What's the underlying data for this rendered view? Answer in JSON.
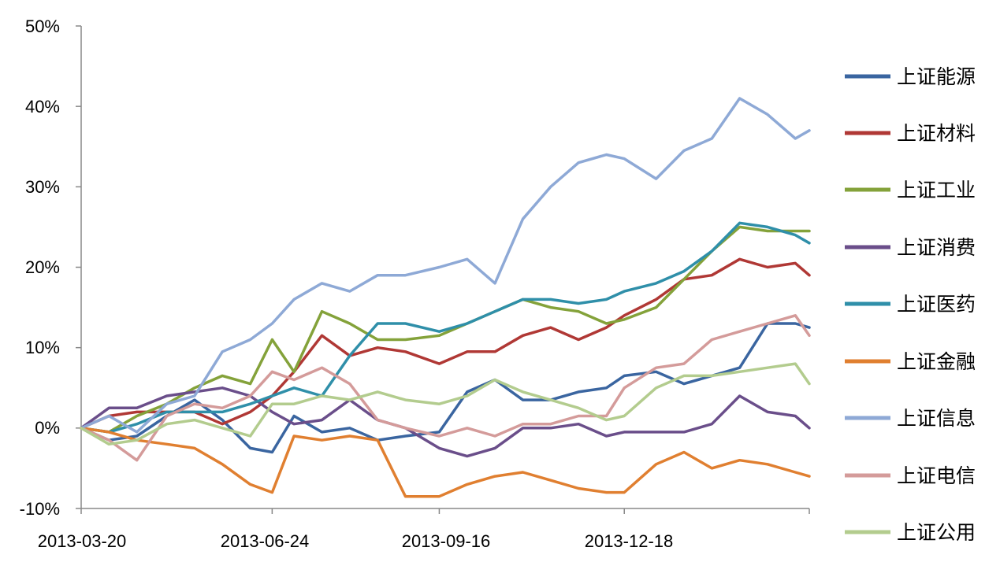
{
  "chart_data": {
    "type": "line",
    "title": "",
    "xlabel": "",
    "ylabel": "",
    "ylim": [
      -10,
      50
    ],
    "yticks": [
      "50%",
      "40%",
      "30%",
      "20%",
      "10%",
      "0%",
      "-10%"
    ],
    "ytick_values": [
      50,
      40,
      30,
      20,
      10,
      0,
      -10
    ],
    "xlim": [
      "2013-03-20",
      "2014-03-21"
    ],
    "xticks": [
      "2013-03-20",
      "2013-06-24",
      "2013-09-16",
      "2013-12-18"
    ],
    "grid": false,
    "legend_position": "right",
    "x": [
      "2013-03-20",
      "2013-04-03",
      "2013-04-17",
      "2013-05-02",
      "2013-05-16",
      "2013-05-30",
      "2013-06-13",
      "2013-06-24",
      "2013-07-05",
      "2013-07-19",
      "2013-08-02",
      "2013-08-16",
      "2013-08-30",
      "2013-09-16",
      "2013-09-30",
      "2013-10-14",
      "2013-10-28",
      "2013-11-11",
      "2013-11-25",
      "2013-12-09",
      "2013-12-18",
      "2014-01-03",
      "2014-01-17",
      "2014-01-31",
      "2014-02-14",
      "2014-02-28",
      "2014-03-14",
      "2014-03-21"
    ],
    "series": [
      {
        "name": "上证能源",
        "color": "#3a65a0",
        "values": [
          0,
          -1.5,
          -1,
          1.5,
          3.5,
          1,
          -2.5,
          -3,
          1.5,
          -0.5,
          0,
          -1.5,
          -1,
          -0.5,
          4.5,
          6,
          3.5,
          3.5,
          4.5,
          5,
          6.5,
          7,
          5.5,
          6.5,
          7.5,
          13,
          13,
          12.5
        ]
      },
      {
        "name": "上证材料",
        "color": "#b03835",
        "values": [
          0,
          1.5,
          2,
          2,
          2,
          0.5,
          2,
          4,
          7,
          11.5,
          9,
          10,
          9.5,
          8,
          9.5,
          9.5,
          11.5,
          12.5,
          11,
          12.5,
          14,
          16,
          18.5,
          19,
          21,
          20,
          20.5,
          19
        ]
      },
      {
        "name": "上证工业",
        "color": "#84a23a",
        "values": [
          0,
          -0.5,
          1.5,
          3,
          5,
          6.5,
          5.5,
          11,
          7,
          14.5,
          13,
          11,
          11,
          11.5,
          13,
          14.5,
          16,
          15,
          14.5,
          13,
          13.5,
          15,
          18.5,
          22,
          25,
          24.5,
          24.5,
          24.5
        ]
      },
      {
        "name": "上证消费",
        "color": "#6a4e8a",
        "values": [
          0,
          2.5,
          2.5,
          4,
          4.5,
          5,
          4,
          2,
          0.5,
          1,
          3.5,
          1,
          0,
          -2.5,
          -3.5,
          -2.5,
          0,
          0,
          0.5,
          -1,
          -0.5,
          -0.5,
          -0.5,
          0.5,
          4,
          2,
          1.5,
          0
        ]
      },
      {
        "name": "上证医药",
        "color": "#2f8fa9",
        "values": [
          0,
          -0.5,
          0.5,
          2,
          2,
          2,
          3,
          4,
          5,
          4,
          9,
          13,
          13,
          12,
          13,
          14.5,
          16,
          16,
          15.5,
          16,
          17,
          18,
          19.5,
          22,
          25.5,
          25,
          24,
          23
        ]
      },
      {
        "name": "上证金融",
        "color": "#e07f30",
        "values": [
          0,
          -0.5,
          -1.5,
          -2,
          -2.5,
          -4.5,
          -7,
          -8,
          -1,
          -1.5,
          -1,
          -1.5,
          -8.5,
          -8.5,
          -7,
          -6,
          -5.5,
          -6.5,
          -7.5,
          -8,
          -8,
          -4.5,
          -3,
          -5,
          -4,
          -4.5,
          -5.5,
          -6
        ]
      },
      {
        "name": "上证信息",
        "color": "#8ea9d6",
        "values": [
          0,
          1.5,
          -0.5,
          3,
          4,
          9.5,
          11,
          13,
          16,
          18,
          17,
          19,
          19,
          20,
          21,
          18,
          26,
          30,
          33,
          34,
          33.5,
          31,
          34.5,
          36,
          41,
          39,
          36,
          37
        ]
      },
      {
        "name": "上证电信",
        "color": "#d49b9a",
        "values": [
          0,
          -1.5,
          -4,
          1.5,
          3,
          2.5,
          4,
          7,
          6,
          7.5,
          5.5,
          1,
          0,
          -1,
          0,
          -1,
          0.5,
          0.5,
          1.5,
          1.5,
          5,
          7.5,
          8,
          11,
          12,
          13,
          14,
          11.5
        ]
      },
      {
        "name": "上证公用",
        "color": "#b3cc8e",
        "values": [
          0,
          -2,
          -1.5,
          0.5,
          1,
          0,
          -1,
          3,
          3,
          4,
          3.5,
          4.5,
          3.5,
          3,
          4,
          6,
          4.5,
          3.5,
          2.5,
          1,
          1.5,
          5,
          6.5,
          6.5,
          7,
          7.5,
          8,
          5.5
        ]
      }
    ]
  }
}
